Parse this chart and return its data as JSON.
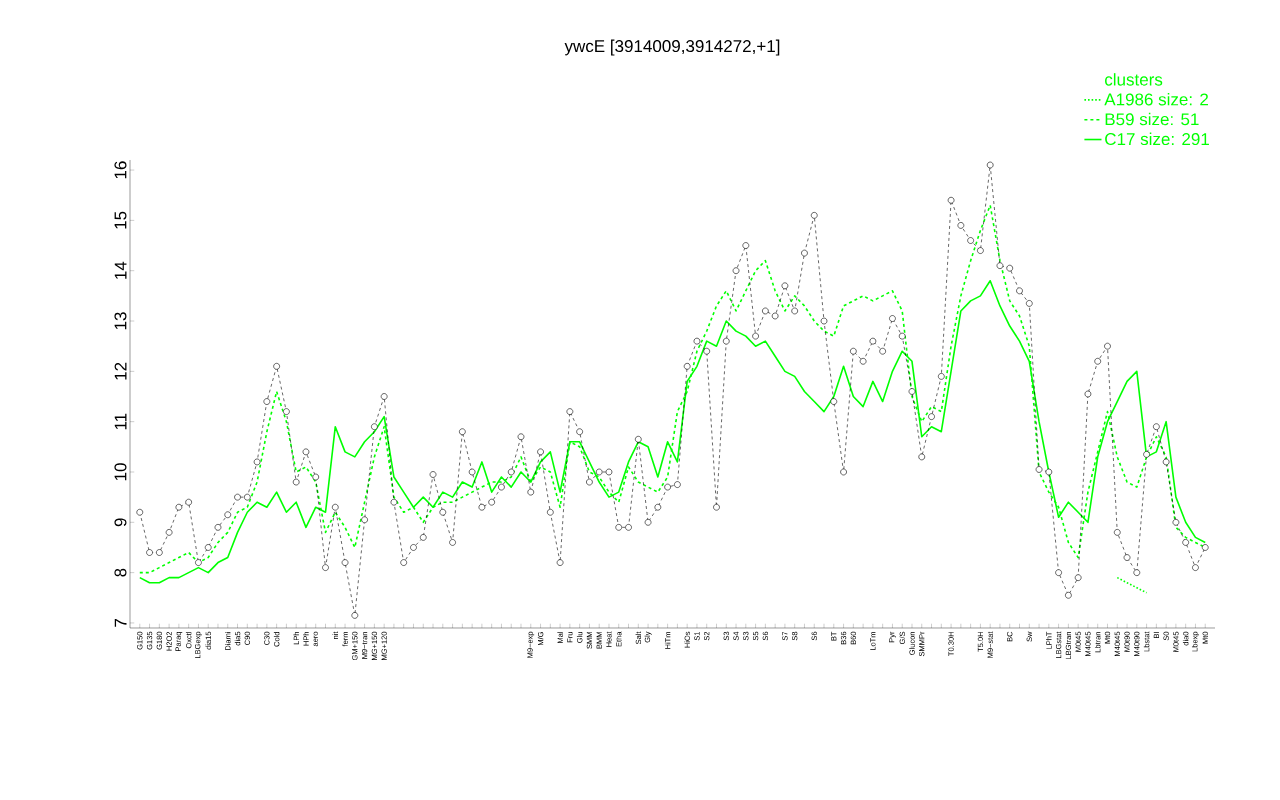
{
  "chart_data": {
    "type": "line",
    "title": "ywcE [3914009,3914272,+1]",
    "legend_title": "clusters",
    "categories": [
      "G150",
      "G135",
      "G180",
      "H2O2",
      "Paraq",
      "Oxctl",
      "LBGexp",
      "dia15",
      null,
      "Diami",
      "dia5",
      "C90",
      null,
      "C30",
      "Cold",
      null,
      "LPh",
      "HPh",
      "aero",
      null,
      "nit",
      "ferm",
      "GM+150",
      "M9−tran",
      "MG+150",
      "MG+120",
      null,
      null,
      null,
      null,
      null,
      null,
      null,
      null,
      null,
      null,
      null,
      null,
      null,
      null,
      "M9−exp",
      "M/G",
      null,
      "Mal",
      "Fru",
      "Glu",
      "SMM",
      "BMM",
      "Heat",
      "Etha",
      null,
      "Salt",
      "Gly",
      null,
      "HiTm",
      null,
      "HiOs",
      "S1",
      "S2",
      null,
      "S3",
      "S4",
      "S3",
      "S5",
      "S6",
      null,
      "S7",
      "S8",
      null,
      "S6",
      null,
      "BT",
      "B36",
      "B60",
      null,
      "LoTm",
      null,
      "Pyr",
      "G/S",
      "Glucon",
      "SMMPr",
      null,
      null,
      "T0.30H",
      null,
      null,
      "T5.0H",
      "M9−stat",
      null,
      "BC",
      null,
      "Sw",
      null,
      "LPhT",
      "LBGstat",
      "LBGtran",
      "M0t45",
      "M40t45",
      "Lbtran",
      "Mt0",
      "M40t45",
      "M0t90",
      "M40t90",
      "Lbstat",
      "BI",
      "S0",
      "M0t45",
      "dia0",
      "Lbexp",
      "Mt0"
    ],
    "series": [
      {
        "color": "#000000",
        "line_style": "dashed",
        "marker": "circle",
        "values": [
          9.2,
          8.4,
          8.4,
          8.8,
          9.3,
          9.4,
          8.2,
          8.5,
          8.9,
          9.15,
          9.5,
          9.5,
          10.2,
          11.4,
          12.1,
          11.2,
          9.8,
          10.4,
          9.9,
          8.1,
          9.3,
          8.2,
          7.15,
          9.05,
          10.9,
          11.5,
          9.4,
          8.2,
          8.5,
          8.7,
          9.95,
          9.2,
          8.6,
          10.8,
          10.0,
          9.3,
          9.4,
          9.7,
          10.0,
          10.7,
          9.6,
          10.4,
          9.2,
          8.2,
          11.2,
          10.8,
          9.8,
          10.0,
          10.0,
          8.9,
          8.9,
          10.65,
          9.0,
          9.3,
          9.7,
          9.75,
          12.1,
          12.6,
          12.4,
          9.3,
          12.6,
          14.0,
          14.5,
          12.7,
          13.2,
          13.1,
          13.7,
          13.2,
          14.35,
          15.1,
          13.0,
          11.4,
          10.0,
          12.4,
          12.2,
          12.6,
          12.4,
          13.05,
          12.7,
          11.6,
          10.3,
          11.1,
          11.9,
          15.4,
          14.9,
          14.6,
          14.4,
          16.1,
          14.1,
          14.05,
          13.6,
          13.35,
          10.05,
          10.0,
          8.0,
          7.55,
          7.9,
          11.55,
          12.2,
          12.5,
          8.8,
          8.3,
          8.0,
          10.35,
          10.9,
          10.2,
          9.0,
          8.6,
          8.1,
          8.5
        ]
      },
      {
        "name": "A1986 size: 2",
        "color": "#00ff00",
        "line_style": "dotted",
        "marker": "none",
        "values": [
          null,
          null,
          null,
          null,
          null,
          null,
          null,
          null,
          null,
          null,
          null,
          null,
          null,
          null,
          null,
          null,
          null,
          null,
          null,
          null,
          null,
          null,
          null,
          null,
          null,
          null,
          null,
          null,
          null,
          null,
          null,
          null,
          null,
          null,
          null,
          null,
          null,
          null,
          null,
          null,
          null,
          null,
          null,
          null,
          null,
          null,
          null,
          null,
          null,
          null,
          null,
          null,
          null,
          null,
          null,
          null,
          null,
          null,
          null,
          null,
          null,
          null,
          null,
          null,
          null,
          null,
          null,
          null,
          null,
          null,
          null,
          null,
          null,
          null,
          null,
          null,
          null,
          null,
          null,
          null,
          null,
          null,
          null,
          null,
          null,
          null,
          null,
          null,
          null,
          null,
          null,
          null,
          null,
          null,
          null,
          null,
          null,
          null,
          null,
          null,
          7.9,
          7.8,
          7.7,
          7.6,
          null,
          null,
          null,
          null,
          null,
          null
        ]
      },
      {
        "name": "B59 size: 51",
        "color": "#00ff00",
        "line_style": "dashed",
        "marker": "none",
        "values": [
          8.0,
          8.0,
          8.1,
          8.2,
          8.3,
          8.4,
          8.2,
          8.3,
          8.6,
          8.8,
          9.2,
          9.3,
          9.8,
          10.8,
          11.6,
          11.0,
          10.0,
          10.1,
          9.8,
          8.8,
          9.2,
          8.9,
          8.5,
          9.4,
          10.3,
          10.9,
          9.5,
          9.2,
          9.3,
          9.0,
          9.3,
          9.4,
          9.4,
          9.5,
          9.6,
          9.7,
          9.8,
          9.8,
          9.9,
          10.3,
          9.8,
          10.1,
          10.0,
          9.3,
          10.6,
          10.5,
          10.0,
          9.9,
          9.6,
          9.4,
          10.1,
          9.8,
          9.7,
          9.6,
          9.9,
          11.2,
          11.6,
          12.4,
          12.8,
          13.3,
          13.6,
          13.2,
          13.6,
          14.0,
          14.2,
          13.6,
          13.2,
          13.5,
          13.3,
          13.0,
          12.8,
          12.7,
          13.3,
          13.4,
          13.5,
          13.4,
          13.5,
          13.6,
          13.2,
          11.5,
          11.0,
          11.3,
          11.2,
          12.5,
          13.5,
          14.2,
          14.8,
          15.3,
          14.2,
          13.4,
          13.1,
          12.5,
          10.0,
          9.6,
          9.3,
          8.6,
          8.3,
          9.6,
          10.4,
          11.2,
          10.3,
          9.8,
          9.7,
          10.3,
          10.7,
          10.3,
          8.9,
          8.7,
          8.6,
          8.5
        ]
      },
      {
        "name": "C17 size: 291",
        "color": "#00ff00",
        "line_style": "solid",
        "marker": "none",
        "values": [
          7.9,
          7.8,
          7.8,
          7.9,
          7.9,
          8.0,
          8.1,
          8.0,
          8.2,
          8.3,
          8.8,
          9.2,
          9.4,
          9.3,
          9.6,
          9.2,
          9.4,
          8.9,
          9.3,
          9.2,
          10.9,
          10.4,
          10.3,
          10.6,
          10.8,
          11.1,
          9.9,
          9.6,
          9.3,
          9.5,
          9.3,
          9.6,
          9.5,
          9.8,
          9.7,
          10.2,
          9.6,
          9.9,
          9.7,
          10.0,
          9.8,
          10.2,
          10.4,
          9.6,
          10.6,
          10.6,
          10.2,
          9.8,
          9.5,
          9.6,
          10.2,
          10.6,
          10.5,
          9.9,
          10.6,
          10.2,
          11.8,
          12.1,
          12.6,
          12.5,
          13.0,
          12.8,
          12.7,
          12.5,
          12.6,
          12.3,
          12.0,
          11.9,
          11.6,
          11.4,
          11.2,
          11.5,
          12.1,
          11.5,
          11.3,
          11.8,
          11.4,
          12.0,
          12.4,
          12.2,
          10.7,
          10.9,
          10.8,
          12.0,
          13.2,
          13.4,
          13.5,
          13.8,
          13.3,
          12.9,
          12.6,
          12.2,
          11.0,
          10.0,
          9.1,
          9.4,
          9.2,
          9.0,
          10.3,
          11.0,
          11.4,
          11.8,
          12.0,
          10.3,
          10.4,
          11.0,
          9.5,
          9.0,
          8.7,
          8.6
        ]
      }
    ],
    "ylim": [
      6.9,
      16.2
    ],
    "yticks": [
      7,
      8,
      9,
      10,
      11,
      12,
      13,
      14,
      15,
      16
    ],
    "legend": "top right"
  }
}
